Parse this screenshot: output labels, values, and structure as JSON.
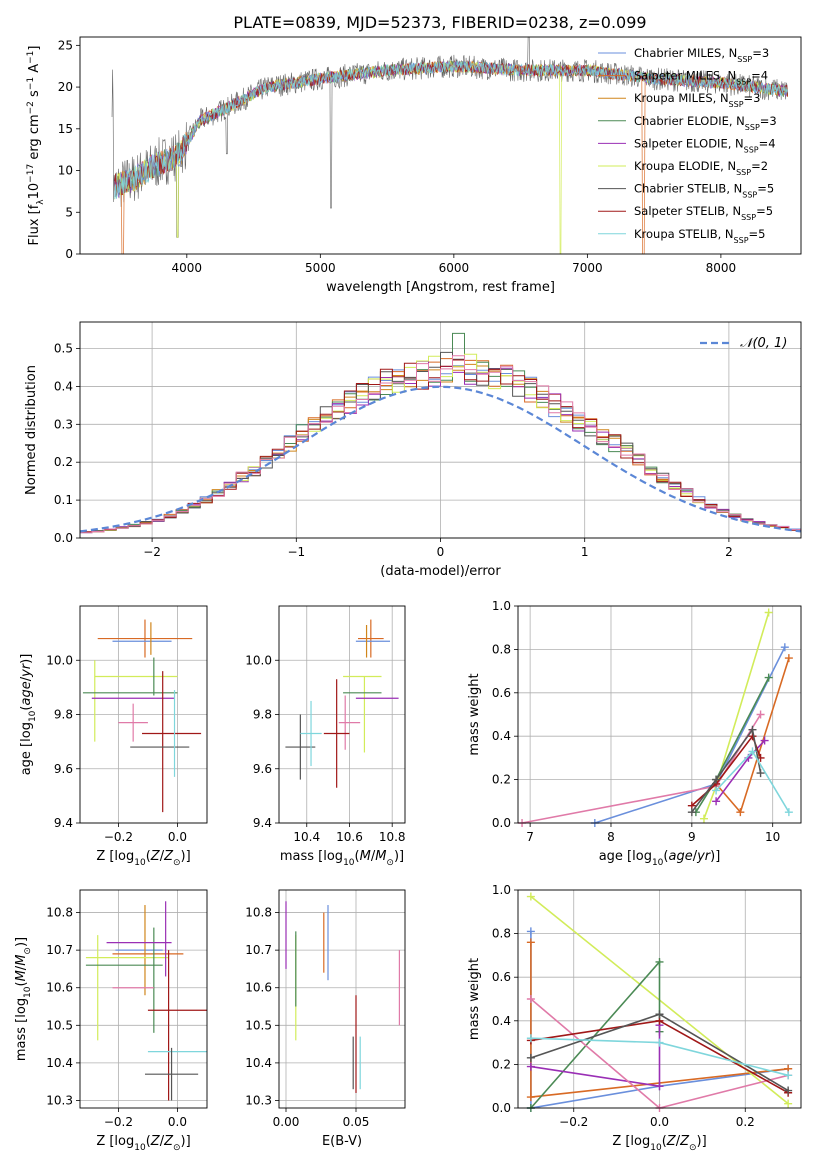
{
  "figure": {
    "title": "PLATE=0839, MJD=52373, FIBERID=0238, z=0.099"
  },
  "colors": {
    "chabrier_miles": "#6a8fdc",
    "salpeter_miles": "#d86a24",
    "kroupa_miles": "#d0861c",
    "chabrier_elodie": "#4b8a55",
    "salpeter_elodie": "#9a2fb5",
    "kroupa_elodie": "#d2ec5a",
    "chabrier_stelib": "#555555",
    "salpeter_stelib": "#a01818",
    "kroupa_stelib": "#7fd6dc",
    "pink": "#e07aa8",
    "normal_curve": "#5b87d6"
  },
  "chart_data": [
    {
      "id": "spectrum",
      "type": "line",
      "xlabel": "wavelength [Angstrom, rest frame]",
      "ylabel": "Flux [f_λ 10^-17 erg cm^-2 s^-1 A^-1]",
      "xlim": [
        3200,
        8600
      ],
      "ylim": [
        0,
        26
      ],
      "xticks": [
        4000,
        5000,
        6000,
        7000,
        8000
      ],
      "yticks": [
        0,
        5,
        10,
        15,
        20,
        25
      ],
      "grid": false,
      "legend_position": "right",
      "legend": [
        {
          "label": "Chabrier MILES, N",
          "sub": "SSP",
          "tail": "=3",
          "color": "chabrier_miles"
        },
        {
          "label": "Salpeter MILES, N",
          "sub": "SSP",
          "tail": "=4",
          "color": "salpeter_miles"
        },
        {
          "label": "Kroupa MILES, N",
          "sub": "SSP",
          "tail": "=3",
          "color": "kroupa_miles"
        },
        {
          "label": "Chabrier ELODIE, N",
          "sub": "SSP",
          "tail": "=3",
          "color": "chabrier_elodie"
        },
        {
          "label": "Salpeter ELODIE, N",
          "sub": "SSP",
          "tail": "=4",
          "color": "salpeter_elodie"
        },
        {
          "label": "Kroupa ELODIE, N",
          "sub": "SSP",
          "tail": "=2",
          "color": "kroupa_elodie"
        },
        {
          "label": "Chabrier STELIB, N",
          "sub": "SSP",
          "tail": "=5",
          "color": "chabrier_stelib"
        },
        {
          "label": "Salpeter STELIB, N",
          "sub": "SSP",
          "tail": "=5",
          "color": "salpeter_stelib"
        },
        {
          "label": "Kroupa STELIB, N",
          "sub": "SSP",
          "tail": "=5",
          "color": "kroupa_stelib"
        }
      ],
      "continuum": [
        [
          3450,
          8
        ],
        [
          3600,
          9
        ],
        [
          3800,
          11
        ],
        [
          3950,
          12
        ],
        [
          4100,
          16
        ],
        [
          4300,
          17.5
        ],
        [
          4600,
          20
        ],
        [
          5000,
          21
        ],
        [
          5500,
          22
        ],
        [
          6000,
          22.5
        ],
        [
          6500,
          22
        ],
        [
          7000,
          22
        ],
        [
          7500,
          21
        ],
        [
          8000,
          20.5
        ],
        [
          8500,
          19.5
        ]
      ],
      "features": [
        {
          "x": 3520,
          "y": 0
        },
        {
          "x": 3930,
          "y": 2
        },
        {
          "x": 4300,
          "y": 12
        },
        {
          "x": 5080,
          "y": 5.5
        },
        {
          "x": 6560,
          "y": 26
        },
        {
          "x": 6800,
          "y": 0
        },
        {
          "x": 7420,
          "y": 0
        }
      ]
    },
    {
      "id": "residuals",
      "type": "line",
      "xlabel": "(data-model)/error",
      "ylabel": "Normed distribution",
      "xlim": [
        -2.5,
        2.5
      ],
      "ylim": [
        0,
        0.57
      ],
      "xticks": [
        -2,
        -1,
        0,
        1,
        2
      ],
      "yticks": [
        0.0,
        0.1,
        0.2,
        0.3,
        0.4,
        0.5
      ],
      "grid": true,
      "legend_label": "𝒩(0, 1)",
      "bin_width": 0.1,
      "bins_start": -2.5,
      "series_envelope": [
        0.015,
        0.018,
        0.022,
        0.028,
        0.033,
        0.04,
        0.048,
        0.058,
        0.07,
        0.085,
        0.1,
        0.12,
        0.14,
        0.16,
        0.18,
        0.2,
        0.225,
        0.25,
        0.275,
        0.3,
        0.32,
        0.34,
        0.36,
        0.38,
        0.395,
        0.41,
        0.42,
        0.425,
        0.43,
        0.44,
        0.45,
        0.45,
        0.44,
        0.43,
        0.425,
        0.42,
        0.41,
        0.39,
        0.37,
        0.35,
        0.33,
        0.31,
        0.29,
        0.27,
        0.25,
        0.23,
        0.21,
        0.18,
        0.16,
        0.14,
        0.12,
        0.1,
        0.085,
        0.07,
        0.058,
        0.048,
        0.04,
        0.033,
        0.028,
        0.022
      ]
    },
    {
      "id": "age-vs-Z",
      "type": "scatter",
      "xlabel": "Z [log10(Z/Z⊙)]",
      "ylabel": "age [log10(age/yr)]",
      "xlim": [
        -0.33,
        0.1
      ],
      "ylim": [
        9.4,
        10.2
      ],
      "xticks": [
        -0.2,
        0.0
      ],
      "yticks": [
        9.4,
        9.6,
        9.8,
        10.0
      ],
      "grid": true,
      "points": [
        {
          "x": -0.11,
          "y": 10.08,
          "xerr": 0.16,
          "yerr": 0.07,
          "color": "salpeter_miles"
        },
        {
          "x": -0.12,
          "y": 10.07,
          "xerr": 0.1,
          "yerr": 0.0,
          "color": "chabrier_miles"
        },
        {
          "x": -0.09,
          "y": 10.08,
          "xerr": 0.0,
          "yerr": 0.06,
          "color": "kroupa_miles"
        },
        {
          "x": -0.14,
          "y": 9.94,
          "xerr": 0.14,
          "yerr": 0.0,
          "color": "kroupa_elodie"
        },
        {
          "x": -0.28,
          "y": 9.85,
          "xerr": 0.0,
          "yerr": 0.15,
          "color": "kroupa_elodie"
        },
        {
          "x": -0.16,
          "y": 9.88,
          "xerr": 0.16,
          "yerr": 0.0,
          "color": "chabrier_elodie"
        },
        {
          "x": -0.08,
          "y": 9.94,
          "xerr": 0.0,
          "yerr": 0.07,
          "color": "chabrier_elodie"
        },
        {
          "x": -0.15,
          "y": 9.86,
          "xerr": 0.14,
          "yerr": 0.0,
          "color": "salpeter_elodie"
        },
        {
          "x": -0.15,
          "y": 9.77,
          "xerr": 0.05,
          "yerr": 0.07,
          "color": "pink"
        },
        {
          "x": -0.02,
          "y": 9.73,
          "xerr": 0.1,
          "yerr": 0.0,
          "color": "salpeter_stelib"
        },
        {
          "x": -0.05,
          "y": 9.7,
          "xerr": 0.0,
          "yerr": 0.26,
          "color": "salpeter_stelib"
        },
        {
          "x": -0.06,
          "y": 9.68,
          "xerr": 0.1,
          "yerr": 0.0,
          "color": "chabrier_stelib"
        },
        {
          "x": -0.01,
          "y": 9.73,
          "xerr": 0.0,
          "yerr": 0.16,
          "color": "kroupa_stelib"
        }
      ]
    },
    {
      "id": "age-vs-mass",
      "type": "scatter",
      "xlabel": "mass [log10(M/M⊙)]",
      "ylabel": "",
      "xlim": [
        10.27,
        10.86
      ],
      "ylim": [
        9.4,
        10.2
      ],
      "xticks": [
        10.4,
        10.6,
        10.8
      ],
      "yticks": [
        9.4,
        9.6,
        9.8,
        10.0
      ],
      "grid": true,
      "points": [
        {
          "x": 10.7,
          "y": 10.08,
          "xerr": 0.06,
          "yerr": 0.07,
          "color": "salpeter_miles"
        },
        {
          "x": 10.71,
          "y": 10.07,
          "xerr": 0.08,
          "yerr": 0.0,
          "color": "chabrier_miles"
        },
        {
          "x": 10.68,
          "y": 10.07,
          "xerr": 0.0,
          "yerr": 0.06,
          "color": "kroupa_miles"
        },
        {
          "x": 10.66,
          "y": 9.94,
          "xerr": 0.09,
          "yerr": 0.0,
          "color": "kroupa_elodie"
        },
        {
          "x": 10.67,
          "y": 9.8,
          "xerr": 0.0,
          "yerr": 0.14,
          "color": "kroupa_elodie"
        },
        {
          "x": 10.66,
          "y": 9.88,
          "xerr": 0.09,
          "yerr": 0.0,
          "color": "chabrier_elodie"
        },
        {
          "x": 10.73,
          "y": 9.86,
          "xerr": 0.1,
          "yerr": 0.0,
          "color": "salpeter_elodie"
        },
        {
          "x": 10.6,
          "y": 9.77,
          "xerr": 0.05,
          "yerr": 0.0,
          "color": "pink"
        },
        {
          "x": 10.58,
          "y": 9.77,
          "xerr": 0.0,
          "yerr": 0.1,
          "color": "pink"
        },
        {
          "x": 10.54,
          "y": 9.73,
          "xerr": 0.06,
          "yerr": 0.2,
          "color": "salpeter_stelib"
        },
        {
          "x": 10.37,
          "y": 9.68,
          "xerr": 0.07,
          "yerr": 0.12,
          "color": "chabrier_stelib"
        },
        {
          "x": 10.42,
          "y": 9.73,
          "xerr": 0.05,
          "yerr": 0.12,
          "color": "kroupa_stelib"
        }
      ]
    },
    {
      "id": "weight-vs-age",
      "type": "line",
      "xlabel": "age [log10(age/yr)]",
      "ylabel": "mass weight",
      "xlim": [
        6.85,
        10.35
      ],
      "ylim": [
        0,
        1.0
      ],
      "xticks": [
        7,
        8,
        9,
        10
      ],
      "yticks": [
        0.0,
        0.2,
        0.4,
        0.6,
        0.8,
        1.0
      ],
      "grid": true,
      "series": [
        {
          "color": "chabrier_miles",
          "x": [
            7.8,
            9.3,
            10.15
          ],
          "y": [
            0.0,
            0.18,
            0.81
          ]
        },
        {
          "color": "salpeter_miles",
          "x": [
            9.3,
            9.6,
            10.2
          ],
          "y": [
            0.18,
            0.05,
            0.76
          ]
        },
        {
          "color": "kroupa_elodie",
          "x": [
            9.15,
            9.3,
            9.95
          ],
          "y": [
            0.02,
            0.17,
            0.97
          ]
        },
        {
          "color": "chabrier_elodie",
          "x": [
            9.05,
            9.3,
            9.95
          ],
          "y": [
            0.05,
            0.2,
            0.67
          ]
        },
        {
          "color": "salpeter_elodie",
          "x": [
            9.3,
            9.7,
            9.9
          ],
          "y": [
            0.1,
            0.3,
            0.38
          ]
        },
        {
          "color": "pink",
          "x": [
            6.9,
            9.3,
            9.85
          ],
          "y": [
            0.0,
            0.17,
            0.5
          ]
        },
        {
          "color": "salpeter_stelib",
          "x": [
            9.0,
            9.3,
            9.75,
            9.85
          ],
          "y": [
            0.08,
            0.18,
            0.4,
            0.3
          ]
        },
        {
          "color": "chabrier_stelib",
          "x": [
            9.0,
            9.3,
            9.75,
            9.85
          ],
          "y": [
            0.05,
            0.2,
            0.43,
            0.23
          ]
        },
        {
          "color": "kroupa_stelib",
          "x": [
            9.3,
            9.75,
            10.2
          ],
          "y": [
            0.15,
            0.33,
            0.05
          ]
        }
      ]
    },
    {
      "id": "mass-vs-Z",
      "type": "scatter",
      "xlabel": "Z [log10(Z/Z⊙)]",
      "ylabel": "mass [log10(M/M⊙)]",
      "xlim": [
        -0.33,
        0.1
      ],
      "ylim": [
        10.28,
        10.86
      ],
      "xticks": [
        -0.2,
        0.0
      ],
      "yticks": [
        10.3,
        10.4,
        10.5,
        10.6,
        10.7,
        10.8
      ],
      "grid": true,
      "points": [
        {
          "x": -0.1,
          "y": 10.69,
          "xerr": 0.12,
          "yerr": 0.0,
          "color": "salpeter_miles"
        },
        {
          "x": -0.13,
          "y": 10.7,
          "xerr": 0.08,
          "yerr": 0.0,
          "color": "chabrier_miles"
        },
        {
          "x": -0.11,
          "y": 10.7,
          "xerr": 0.0,
          "yerr": 0.12,
          "color": "kroupa_miles"
        },
        {
          "x": -0.17,
          "y": 10.68,
          "xerr": 0.14,
          "yerr": 0.0,
          "color": "kroupa_elodie"
        },
        {
          "x": -0.27,
          "y": 10.6,
          "xerr": 0.0,
          "yerr": 0.14,
          "color": "kroupa_elodie"
        },
        {
          "x": -0.18,
          "y": 10.66,
          "xerr": 0.13,
          "yerr": 0.0,
          "color": "chabrier_elodie"
        },
        {
          "x": -0.08,
          "y": 10.62,
          "xerr": 0.0,
          "yerr": 0.14,
          "color": "chabrier_elodie"
        },
        {
          "x": -0.13,
          "y": 10.72,
          "xerr": 0.11,
          "yerr": 0.0,
          "color": "salpeter_elodie"
        },
        {
          "x": -0.04,
          "y": 10.73,
          "xerr": 0.0,
          "yerr": 0.1,
          "color": "salpeter_elodie"
        },
        {
          "x": -0.15,
          "y": 10.6,
          "xerr": 0.07,
          "yerr": 0.0,
          "color": "pink"
        },
        {
          "x": 0.0,
          "y": 10.54,
          "xerr": 0.1,
          "yerr": 0.0,
          "color": "salpeter_stelib"
        },
        {
          "x": -0.03,
          "y": 10.5,
          "xerr": 0.0,
          "yerr": 0.2,
          "color": "salpeter_stelib"
        },
        {
          "x": 0.0,
          "y": 10.43,
          "xerr": 0.1,
          "yerr": 0.0,
          "color": "kroupa_stelib"
        },
        {
          "x": -0.02,
          "y": 10.37,
          "xerr": 0.09,
          "yerr": 0.0,
          "color": "chabrier_stelib"
        },
        {
          "x": -0.02,
          "y": 10.37,
          "xerr": 0.0,
          "yerr": 0.07,
          "color": "chabrier_stelib"
        }
      ]
    },
    {
      "id": "mass-vs-EBV",
      "type": "scatter",
      "xlabel": "E(B-V)",
      "ylabel": "",
      "xlim": [
        -0.005,
        0.085
      ],
      "ylim": [
        10.28,
        10.86
      ],
      "xticks": [
        0.0,
        0.05
      ],
      "xtick_labels": [
        "0.00",
        "0.05"
      ],
      "yticks": [
        10.3,
        10.4,
        10.5,
        10.6,
        10.7,
        10.8
      ],
      "grid": true,
      "points": [
        {
          "x": 0.0,
          "y": 10.74,
          "xerr": 0.0,
          "yerr": 0.09,
          "color": "salpeter_elodie"
        },
        {
          "x": 0.007,
          "y": 10.6,
          "xerr": 0.0,
          "yerr": 0.14,
          "color": "kroupa_elodie"
        },
        {
          "x": 0.007,
          "y": 10.65,
          "xerr": 0.0,
          "yerr": 0.1,
          "color": "chabrier_elodie"
        },
        {
          "x": 0.027,
          "y": 10.72,
          "xerr": 0.0,
          "yerr": 0.08,
          "color": "salpeter_miles"
        },
        {
          "x": 0.03,
          "y": 10.72,
          "xerr": 0.0,
          "yerr": 0.1,
          "color": "chabrier_miles"
        },
        {
          "x": 0.05,
          "y": 10.45,
          "xerr": 0.0,
          "yerr": 0.13,
          "color": "salpeter_stelib"
        },
        {
          "x": 0.048,
          "y": 10.4,
          "xerr": 0.0,
          "yerr": 0.07,
          "color": "chabrier_stelib"
        },
        {
          "x": 0.053,
          "y": 10.4,
          "xerr": 0.0,
          "yerr": 0.07,
          "color": "kroupa_stelib"
        },
        {
          "x": 0.081,
          "y": 10.6,
          "xerr": 0.0,
          "yerr": 0.1,
          "color": "pink"
        }
      ]
    },
    {
      "id": "weight-vs-Z",
      "type": "line",
      "xlabel": "Z [log10(Z/Z⊙)]",
      "ylabel": "mass weight",
      "xlim": [
        -0.33,
        0.33
      ],
      "ylim": [
        0,
        1.0
      ],
      "xticks": [
        -0.2,
        0.0,
        0.2
      ],
      "yticks": [
        0.0,
        0.2,
        0.4,
        0.6,
        0.8,
        1.0
      ],
      "grid": true,
      "series": [
        {
          "color": "chabrier_miles",
          "x": [
            -0.3,
            -0.3,
            0.0,
            0.3
          ],
          "y": [
            0.81,
            0.0,
            0.1,
            0.18
          ]
        },
        {
          "color": "salpeter_miles",
          "x": [
            -0.3,
            -0.3,
            0.3
          ],
          "y": [
            0.76,
            0.05,
            0.18
          ]
        },
        {
          "color": "kroupa_elodie",
          "x": [
            -0.3,
            0.3
          ],
          "y": [
            0.97,
            0.02
          ]
        },
        {
          "color": "chabrier_elodie",
          "x": [
            -0.3,
            0.0,
            0.0
          ],
          "y": [
            0.0,
            0.67,
            0.35
          ]
        },
        {
          "color": "salpeter_elodie",
          "x": [
            -0.3,
            0.0,
            0.0
          ],
          "y": [
            0.19,
            0.1,
            0.38
          ]
        },
        {
          "color": "pink",
          "x": [
            -0.3,
            0.0,
            0.3
          ],
          "y": [
            0.5,
            0.0,
            0.15
          ]
        },
        {
          "color": "salpeter_stelib",
          "x": [
            -0.3,
            0.0,
            0.3
          ],
          "y": [
            0.31,
            0.4,
            0.07
          ]
        },
        {
          "color": "chabrier_stelib",
          "x": [
            -0.3,
            0.0,
            0.3
          ],
          "y": [
            0.23,
            0.43,
            0.08
          ]
        },
        {
          "color": "kroupa_stelib",
          "x": [
            -0.3,
            0.0,
            0.3
          ],
          "y": [
            0.32,
            0.3,
            0.15
          ]
        }
      ]
    }
  ]
}
